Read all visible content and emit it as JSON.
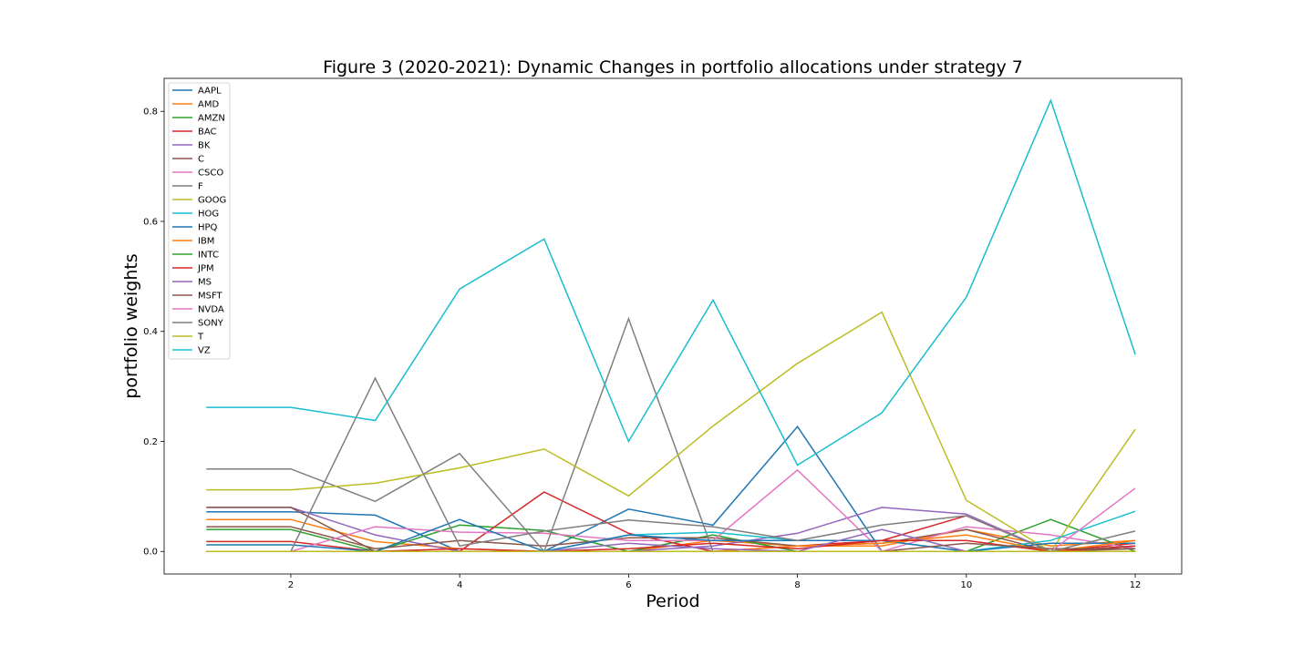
{
  "chart_data": {
    "type": "line",
    "title": "Figure 3 (2020-2021): Dynamic Changes in portfolio allocations under strategy 7",
    "xlabel": "Period",
    "ylabel": "portfolio weights",
    "xlim": [
      0.5,
      12.55
    ],
    "ylim": [
      -0.041,
      0.86
    ],
    "xticks": [
      2,
      4,
      6,
      8,
      10,
      12
    ],
    "yticks": [
      0.0,
      0.2,
      0.4,
      0.6,
      0.8
    ],
    "xtick_labels": [
      "2",
      "4",
      "6",
      "8",
      "10",
      "12"
    ],
    "ytick_labels": [
      "0.0",
      "0.2",
      "0.4",
      "0.6",
      "0.8"
    ],
    "grid": false,
    "legend_position": "upper-left",
    "x": [
      1,
      2,
      3,
      4,
      5,
      6,
      7,
      8,
      9,
      10,
      11,
      12
    ],
    "series": [
      {
        "name": "AAPL",
        "color": "#1f77b4",
        "values": [
          0.072,
          0.072,
          0.066,
          0.0,
          0.0,
          0.077,
          0.048,
          0.227,
          0.0,
          0.0,
          0.0,
          0.01
        ]
      },
      {
        "name": "AMD",
        "color": "#ff7f0e",
        "values": [
          0.058,
          0.058,
          0.018,
          0.005,
          0.0,
          0.0,
          0.02,
          0.01,
          0.01,
          0.04,
          0.01,
          0.02
        ]
      },
      {
        "name": "AMZN",
        "color": "#2ca02c",
        "values": [
          0.04,
          0.04,
          0.0,
          0.048,
          0.038,
          0.0,
          0.03,
          0.0,
          0.0,
          0.0,
          0.058,
          0.0
        ]
      },
      {
        "name": "BAC",
        "color": "#d62728",
        "values": [
          0.018,
          0.018,
          0.0,
          0.0,
          0.108,
          0.033,
          0.0,
          0.01,
          0.02,
          0.065,
          0.0,
          0.015
        ]
      },
      {
        "name": "BK",
        "color": "#9467bd",
        "values": [
          0.08,
          0.08,
          0.03,
          0.0,
          0.0,
          0.0,
          0.01,
          0.033,
          0.08,
          0.068,
          0.0,
          0.0
        ]
      },
      {
        "name": "C",
        "color": "#8c564b",
        "values": [
          0.045,
          0.045,
          0.005,
          0.02,
          0.01,
          0.025,
          0.025,
          0.01,
          0.015,
          0.04,
          0.0,
          0.005
        ]
      },
      {
        "name": "CSCO",
        "color": "#e377c2",
        "values": [
          0.0,
          0.0,
          0.045,
          0.035,
          0.033,
          0.02,
          0.02,
          0.148,
          0.0,
          0.045,
          0.03,
          0.005
        ]
      },
      {
        "name": "F",
        "color": "#7f7f7f",
        "values": [
          0.15,
          0.15,
          0.091,
          0.178,
          0.0,
          0.423,
          0.0,
          0.0,
          0.0,
          0.0,
          0.0,
          0.0
        ]
      },
      {
        "name": "GOOG",
        "color": "#bcbd22",
        "values": [
          0.112,
          0.112,
          0.124,
          0.152,
          0.186,
          0.101,
          0.228,
          0.342,
          0.435,
          0.093,
          0.0,
          0.222
        ]
      },
      {
        "name": "HOG",
        "color": "#17becf",
        "values": [
          0.0,
          0.0,
          0.0,
          0.0,
          0.0,
          0.03,
          0.035,
          0.02,
          0.02,
          0.0,
          0.02,
          0.073
        ]
      },
      {
        "name": "HPQ",
        "color": "#1f77b4",
        "values": [
          0.012,
          0.012,
          0.0,
          0.058,
          0.0,
          0.03,
          0.02,
          0.02,
          0.02,
          0.0,
          0.015,
          0.015
        ]
      },
      {
        "name": "IBM",
        "color": "#ff7f0e",
        "values": [
          0.0,
          0.0,
          0.0,
          0.0,
          0.0,
          0.0,
          0.0,
          0.01,
          0.015,
          0.03,
          0.0,
          0.02
        ]
      },
      {
        "name": "INTC",
        "color": "#2ca02c",
        "values": [
          0.0,
          0.0,
          0.0,
          0.0,
          0.0,
          0.0,
          0.0,
          0.0,
          0.0,
          0.0,
          0.0,
          0.0
        ]
      },
      {
        "name": "JPM",
        "color": "#d62728",
        "values": [
          0.0,
          0.0,
          0.0,
          0.005,
          0.0,
          0.005,
          0.015,
          0.005,
          0.02,
          0.02,
          0.0,
          0.01
        ]
      },
      {
        "name": "MS",
        "color": "#9467bd",
        "values": [
          0.0,
          0.0,
          0.0,
          0.0,
          0.0,
          0.015,
          0.005,
          0.0,
          0.04,
          0.0,
          0.0,
          0.0
        ]
      },
      {
        "name": "MSFT",
        "color": "#8c564b",
        "values": [
          0.08,
          0.08,
          0.0,
          0.0,
          0.0,
          0.0,
          0.0,
          0.0,
          0.0,
          0.015,
          0.005,
          0.005
        ]
      },
      {
        "name": "NVDA",
        "color": "#e377c2",
        "values": [
          0.0,
          0.0,
          0.0,
          0.0,
          0.0,
          0.0,
          0.0,
          0.0,
          0.0,
          0.0,
          0.0,
          0.115
        ]
      },
      {
        "name": "SONY",
        "color": "#7f7f7f",
        "values": [
          0.0,
          0.0,
          0.315,
          0.01,
          0.037,
          0.057,
          0.045,
          0.02,
          0.048,
          0.065,
          0.0,
          0.037
        ]
      },
      {
        "name": "T",
        "color": "#bcbd22",
        "values": [
          0.0,
          0.0,
          0.0,
          0.0,
          0.0,
          0.0,
          0.0,
          0.0,
          0.0,
          0.0,
          0.0,
          0.0
        ]
      },
      {
        "name": "VZ",
        "color": "#17becf",
        "values": [
          0.262,
          0.262,
          0.238,
          0.477,
          0.568,
          0.2,
          0.457,
          0.157,
          0.252,
          0.462,
          0.82,
          0.358
        ]
      }
    ]
  }
}
